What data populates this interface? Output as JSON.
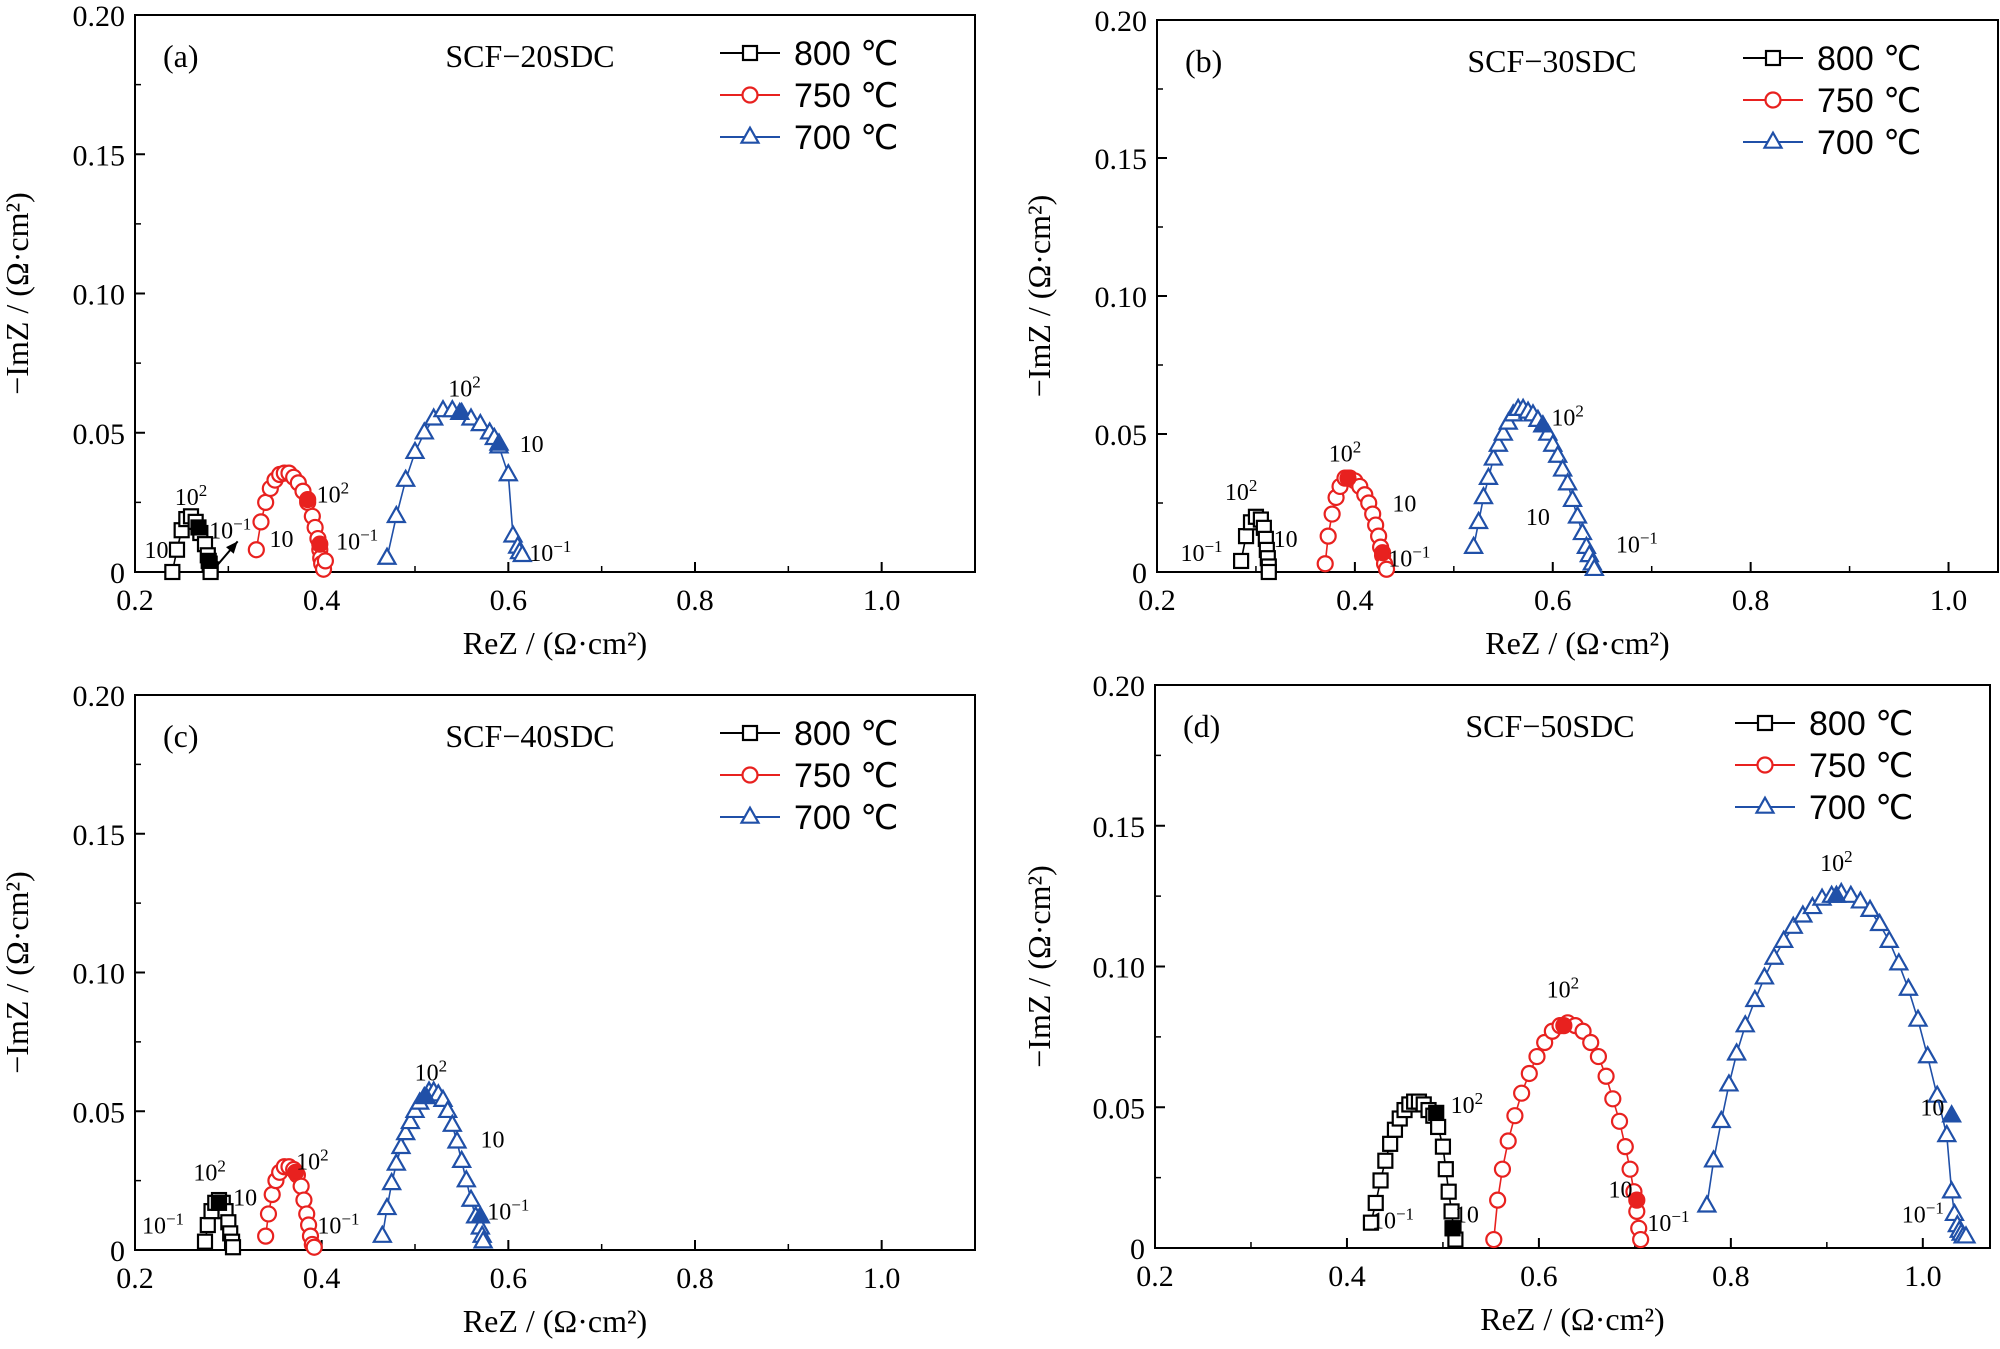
{
  "chart_data": [
    {
      "type": "scatter",
      "panel_label": "(a)",
      "title": "SCF−20SDC",
      "xlabel": "ReZ / (Ω·cm²)",
      "ylabel": "−ImZ / (Ω·cm²)",
      "xlim": [
        0.2,
        1.1
      ],
      "ylim": [
        0,
        0.2
      ],
      "xticks": [
        "0.2",
        "0.4",
        "0.6",
        "0.8",
        "1.0"
      ],
      "yticks": [
        "0",
        "0.05",
        "0.10",
        "0.15",
        "0.20"
      ],
      "legend_position": "top-right",
      "series": [
        {
          "name": "800 ℃",
          "marker": "square",
          "color": "#000000",
          "x": [
            0.24,
            0.245,
            0.25,
            0.255,
            0.26,
            0.265,
            0.27,
            0.275,
            0.278,
            0.28,
            0.281,
            0.281
          ],
          "y": [
            0.0,
            0.008,
            0.015,
            0.019,
            0.02,
            0.018,
            0.014,
            0.01,
            0.006,
            0.003,
            0.001,
            0.0
          ],
          "filled": [
            [
              0.268,
              0.016
            ],
            [
              0.279,
              0.004
            ]
          ]
        },
        {
          "name": "750 ℃",
          "marker": "circle",
          "color": "#e8211f",
          "x": [
            0.33,
            0.335,
            0.34,
            0.345,
            0.35,
            0.355,
            0.36,
            0.365,
            0.37,
            0.375,
            0.38,
            0.385,
            0.39,
            0.393,
            0.396,
            0.398,
            0.399,
            0.4,
            0.402,
            0.404
          ],
          "y": [
            0.008,
            0.018,
            0.025,
            0.03,
            0.033,
            0.035,
            0.0355,
            0.0355,
            0.034,
            0.032,
            0.029,
            0.025,
            0.02,
            0.016,
            0.012,
            0.008,
            0.005,
            0.003,
            0.001,
            0.004
          ],
          "filled": [
            [
              0.385,
              0.026
            ],
            [
              0.398,
              0.01
            ]
          ]
        },
        {
          "name": "700 ℃",
          "marker": "triangle",
          "color": "#2050a8",
          "x": [
            0.47,
            0.48,
            0.49,
            0.5,
            0.51,
            0.52,
            0.53,
            0.54,
            0.55,
            0.56,
            0.57,
            0.58,
            0.585,
            0.59,
            0.6,
            0.605,
            0.61,
            0.612,
            0.615
          ],
          "y": [
            0.005,
            0.02,
            0.033,
            0.043,
            0.05,
            0.055,
            0.058,
            0.058,
            0.057,
            0.055,
            0.053,
            0.05,
            0.048,
            0.045,
            0.035,
            0.013,
            0.009,
            0.007,
            0.006
          ],
          "filled": [
            [
              0.548,
              0.057
            ],
            [
              0.59,
              0.046
            ]
          ]
        }
      ],
      "annotations": [
        {
          "text": "10²",
          "x": 0.26,
          "y": 0.024
        },
        {
          "text": "10",
          "x": 0.223,
          "y": 0.005
        },
        {
          "text": "10⁻¹",
          "x": 0.302,
          "y": 0.012
        },
        {
          "text": "10²",
          "x": 0.412,
          "y": 0.025
        },
        {
          "text": "10",
          "x": 0.357,
          "y": 0.009
        },
        {
          "text": "10⁻¹",
          "x": 0.438,
          "y": 0.008
        },
        {
          "text": "10²",
          "x": 0.553,
          "y": 0.063
        },
        {
          "text": "10",
          "x": 0.625,
          "y": 0.043
        },
        {
          "text": "10⁻¹",
          "x": 0.645,
          "y": 0.004
        }
      ]
    },
    {
      "type": "scatter",
      "panel_label": "(b)",
      "title": "SCF−30SDC",
      "xlabel": "ReZ / (Ω·cm²)",
      "ylabel": "−ImZ / (Ω·cm²)",
      "xlim": [
        0.2,
        1.05
      ],
      "ylim": [
        0,
        0.2
      ],
      "xticks": [
        "0.2",
        "0.4",
        "0.6",
        "0.8",
        "1.0"
      ],
      "yticks": [
        "0",
        "0.05",
        "0.10",
        "0.15",
        "0.20"
      ],
      "legend_position": "top-right",
      "series": [
        {
          "name": "800 ℃",
          "marker": "square",
          "color": "#000000",
          "x": [
            0.285,
            0.29,
            0.295,
            0.3,
            0.305,
            0.308,
            0.31,
            0.311,
            0.312,
            0.313,
            0.313
          ],
          "y": [
            0.004,
            0.013,
            0.018,
            0.02,
            0.019,
            0.016,
            0.012,
            0.008,
            0.005,
            0.002,
            0.0
          ],
          "filled": []
        },
        {
          "name": "750 ℃",
          "marker": "circle",
          "color": "#e8211f",
          "x": [
            0.37,
            0.373,
            0.377,
            0.381,
            0.385,
            0.39,
            0.395,
            0.4,
            0.405,
            0.41,
            0.414,
            0.418,
            0.421,
            0.424,
            0.426,
            0.428,
            0.43,
            0.432
          ],
          "y": [
            0.003,
            0.013,
            0.021,
            0.027,
            0.031,
            0.034,
            0.034,
            0.033,
            0.031,
            0.028,
            0.025,
            0.021,
            0.017,
            0.013,
            0.009,
            0.006,
            0.003,
            0.001
          ],
          "filled": [
            [
              0.393,
              0.034
            ],
            [
              0.428,
              0.007
            ]
          ]
        },
        {
          "name": "700 ℃",
          "marker": "triangle",
          "color": "#2050a8",
          "x": [
            0.52,
            0.525,
            0.53,
            0.535,
            0.54,
            0.545,
            0.55,
            0.555,
            0.56,
            0.565,
            0.57,
            0.575,
            0.58,
            0.585,
            0.59,
            0.595,
            0.6,
            0.605,
            0.61,
            0.615,
            0.62,
            0.625,
            0.63,
            0.634,
            0.637,
            0.64,
            0.642
          ],
          "y": [
            0.009,
            0.018,
            0.027,
            0.034,
            0.041,
            0.046,
            0.05,
            0.054,
            0.057,
            0.059,
            0.059,
            0.058,
            0.057,
            0.055,
            0.053,
            0.05,
            0.046,
            0.042,
            0.037,
            0.032,
            0.026,
            0.02,
            0.014,
            0.009,
            0.006,
            0.003,
            0.001
          ],
          "filled": [
            [
              0.59,
              0.053
            ]
          ]
        }
      ],
      "annotations": [
        {
          "text": "10²",
          "x": 0.285,
          "y": 0.026
        },
        {
          "text": "10⁻¹",
          "x": 0.245,
          "y": 0.004
        },
        {
          "text": "10",
          "x": 0.33,
          "y": 0.009
        },
        {
          "text": "10²",
          "x": 0.39,
          "y": 0.04
        },
        {
          "text": "10",
          "x": 0.45,
          "y": 0.022
        },
        {
          "text": "10⁻¹",
          "x": 0.455,
          "y": 0.002
        },
        {
          "text": "10²",
          "x": 0.615,
          "y": 0.053
        },
        {
          "text": "10",
          "x": 0.585,
          "y": 0.017
        },
        {
          "text": "10⁻¹",
          "x": 0.685,
          "y": 0.007
        }
      ]
    },
    {
      "type": "scatter",
      "panel_label": "(c)",
      "title": "SCF−40SDC",
      "xlabel": "ReZ / (Ω·cm²)",
      "ylabel": "−ImZ / (Ω·cm²)",
      "xlim": [
        0.2,
        1.1
      ],
      "ylim": [
        0,
        0.2
      ],
      "xticks": [
        "0.2",
        "0.4",
        "0.6",
        "0.8",
        "1.0"
      ],
      "yticks": [
        "0",
        "0.05",
        "0.10",
        "0.15",
        "0.20"
      ],
      "legend_position": "top-right",
      "series": [
        {
          "name": "800 ℃",
          "marker": "square",
          "color": "#000000",
          "x": [
            0.275,
            0.278,
            0.282,
            0.286,
            0.29,
            0.294,
            0.297,
            0.3,
            0.302,
            0.304,
            0.305
          ],
          "y": [
            0.003,
            0.009,
            0.014,
            0.017,
            0.018,
            0.017,
            0.014,
            0.01,
            0.006,
            0.003,
            0.001
          ],
          "filled": [
            [
              0.29,
              0.017
            ]
          ]
        },
        {
          "name": "750 ℃",
          "marker": "circle",
          "color": "#e8211f",
          "x": [
            0.34,
            0.343,
            0.347,
            0.351,
            0.355,
            0.36,
            0.365,
            0.37,
            0.374,
            0.378,
            0.381,
            0.384,
            0.386,
            0.388,
            0.39,
            0.392
          ],
          "y": [
            0.005,
            0.013,
            0.02,
            0.025,
            0.028,
            0.03,
            0.03,
            0.029,
            0.027,
            0.023,
            0.018,
            0.013,
            0.009,
            0.005,
            0.002,
            0.001
          ],
          "filled": [
            [
              0.372,
              0.028
            ]
          ]
        },
        {
          "name": "700 ℃",
          "marker": "triangle",
          "color": "#2050a8",
          "x": [
            0.465,
            0.47,
            0.475,
            0.48,
            0.485,
            0.49,
            0.495,
            0.5,
            0.505,
            0.51,
            0.515,
            0.52,
            0.525,
            0.53,
            0.535,
            0.54,
            0.545,
            0.55,
            0.555,
            0.56,
            0.565,
            0.57,
            0.572,
            0.573
          ],
          "y": [
            0.005,
            0.015,
            0.024,
            0.031,
            0.037,
            0.042,
            0.046,
            0.05,
            0.053,
            0.055,
            0.057,
            0.057,
            0.056,
            0.054,
            0.05,
            0.045,
            0.039,
            0.032,
            0.025,
            0.018,
            0.012,
            0.008,
            0.005,
            0.003
          ],
          "filled": [
            [
              0.512,
              0.055
            ],
            [
              0.57,
              0.012
            ]
          ]
        }
      ],
      "annotations": [
        {
          "text": "10²",
          "x": 0.28,
          "y": 0.025
        },
        {
          "text": "10⁻¹",
          "x": 0.23,
          "y": 0.006
        },
        {
          "text": "10",
          "x": 0.318,
          "y": 0.016
        },
        {
          "text": "10²",
          "x": 0.39,
          "y": 0.029
        },
        {
          "text": "10⁻¹",
          "x": 0.418,
          "y": 0.006
        },
        {
          "text": "10²",
          "x": 0.517,
          "y": 0.061
        },
        {
          "text": "10",
          "x": 0.583,
          "y": 0.037
        },
        {
          "text": "10⁻¹",
          "x": 0.6,
          "y": 0.011
        }
      ]
    },
    {
      "type": "scatter",
      "panel_label": "(d)",
      "title": "SCF−50SDC",
      "xlabel": "ReZ / (Ω·cm²)",
      "ylabel": "−ImZ / (Ω·cm²)",
      "xlim": [
        0.2,
        1.07
      ],
      "ylim": [
        0,
        0.2
      ],
      "xticks": [
        "0.2",
        "0.4",
        "0.6",
        "0.8",
        "1.0"
      ],
      "yticks": [
        "0",
        "0.05",
        "0.10",
        "0.15",
        "0.20"
      ],
      "legend_position": "top-right",
      "series": [
        {
          "name": "800 ℃",
          "marker": "square",
          "color": "#000000",
          "x": [
            0.425,
            0.43,
            0.435,
            0.44,
            0.445,
            0.45,
            0.455,
            0.46,
            0.465,
            0.47,
            0.475,
            0.48,
            0.485,
            0.49,
            0.495,
            0.5,
            0.503,
            0.506,
            0.509,
            0.511,
            0.513
          ],
          "y": [
            0.009,
            0.016,
            0.024,
            0.031,
            0.037,
            0.042,
            0.046,
            0.049,
            0.051,
            0.052,
            0.052,
            0.051,
            0.049,
            0.047,
            0.043,
            0.036,
            0.028,
            0.02,
            0.013,
            0.007,
            0.003
          ],
          "filled": [
            [
              0.493,
              0.048
            ],
            [
              0.51,
              0.007
            ]
          ]
        },
        {
          "name": "750 ℃",
          "marker": "circle",
          "color": "#e8211f",
          "x": [
            0.553,
            0.557,
            0.562,
            0.568,
            0.575,
            0.582,
            0.59,
            0.598,
            0.606,
            0.614,
            0.622,
            0.63,
            0.638,
            0.646,
            0.654,
            0.662,
            0.67,
            0.677,
            0.684,
            0.69,
            0.695,
            0.699,
            0.702,
            0.704,
            0.706
          ],
          "y": [
            0.003,
            0.017,
            0.028,
            0.038,
            0.047,
            0.055,
            0.062,
            0.068,
            0.073,
            0.077,
            0.079,
            0.08,
            0.079,
            0.077,
            0.073,
            0.068,
            0.061,
            0.053,
            0.045,
            0.036,
            0.028,
            0.02,
            0.013,
            0.007,
            0.003
          ],
          "filled": [
            [
              0.626,
              0.079
            ],
            [
              0.702,
              0.017
            ]
          ]
        },
        {
          "name": "700 ℃",
          "marker": "triangle",
          "color": "#2050a8",
          "x": [
            0.775,
            0.782,
            0.79,
            0.798,
            0.806,
            0.815,
            0.825,
            0.835,
            0.845,
            0.855,
            0.865,
            0.875,
            0.885,
            0.895,
            0.905,
            0.915,
            0.925,
            0.935,
            0.945,
            0.955,
            0.965,
            0.975,
            0.985,
            0.995,
            1.005,
            1.015,
            1.025,
            1.03,
            1.033,
            1.036,
            1.038,
            1.04,
            1.042,
            1.045
          ],
          "y": [
            0.015,
            0.031,
            0.045,
            0.058,
            0.069,
            0.079,
            0.088,
            0.096,
            0.103,
            0.109,
            0.114,
            0.118,
            0.121,
            0.124,
            0.125,
            0.126,
            0.125,
            0.123,
            0.12,
            0.115,
            0.109,
            0.101,
            0.092,
            0.081,
            0.068,
            0.054,
            0.04,
            0.02,
            0.012,
            0.008,
            0.006,
            0.005,
            0.004,
            0.004
          ],
          "filled": [
            [
              0.91,
              0.125
            ],
            [
              1.03,
              0.047
            ]
          ]
        }
      ],
      "annotations": [
        {
          "text": "10²",
          "x": 0.525,
          "y": 0.048
        },
        {
          "text": "10⁻¹",
          "x": 0.448,
          "y": 0.007
        },
        {
          "text": "10",
          "x": 0.525,
          "y": 0.009
        },
        {
          "text": "10²",
          "x": 0.625,
          "y": 0.089
        },
        {
          "text": "10",
          "x": 0.685,
          "y": 0.018
        },
        {
          "text": "10⁻¹",
          "x": 0.735,
          "y": 0.006
        },
        {
          "text": "10²",
          "x": 0.91,
          "y": 0.134
        },
        {
          "text": "10",
          "x": 1.01,
          "y": 0.047
        },
        {
          "text": "10⁻¹",
          "x": 1.0,
          "y": 0.009
        }
      ]
    }
  ]
}
